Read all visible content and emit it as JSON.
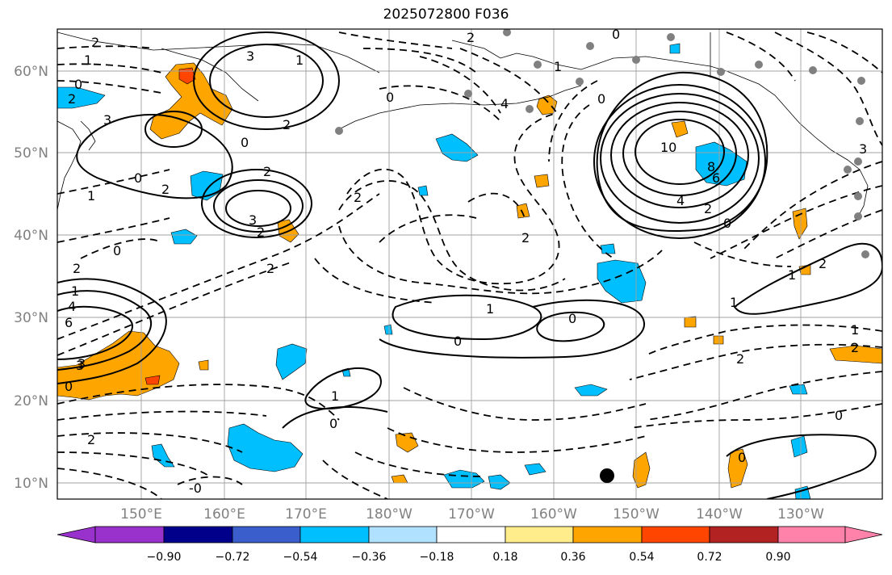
{
  "title": "2025072800 F036",
  "lat_labels": [
    "60°N",
    "50°N",
    "40°N",
    "30°N",
    "20°N",
    "10°N"
  ],
  "lon_labels": [
    "150°E",
    "160°E",
    "170°E",
    "180°W",
    "170°W",
    "160°W",
    "150°W",
    "140°W",
    "130°W"
  ],
  "colorbar": {
    "tick_labels": [
      "−0.90",
      "−0.72",
      "−0.54",
      "−0.36",
      "−0.18",
      "0.18",
      "0.36",
      "0.54",
      "0.72",
      "0.90"
    ],
    "colors": [
      "#9932cc",
      "#00008b",
      "#3a5fcd",
      "#00bfff",
      "#b0e2ff",
      "#ffffff",
      "#ffec8b",
      "#ffa500",
      "#ff4500",
      "#b22222",
      "#ff82ab"
    ]
  },
  "contour_labels": [
    "2",
    "1",
    "3",
    "2",
    "0",
    "0",
    "3",
    "2",
    "2",
    "3",
    "2",
    "2",
    "0",
    "1",
    "0",
    "0",
    "1",
    "2",
    "1",
    "4",
    "6",
    "3",
    "0",
    "2",
    "2",
    "0",
    "2",
    "0",
    "1",
    "1",
    "0",
    "2",
    "1",
    "0",
    "-0",
    "2",
    "10",
    "8",
    "6",
    "4",
    "2",
    "0",
    "0",
    "1",
    "2",
    "1",
    "1",
    "2",
    "0",
    "3",
    "4",
    "0",
    "3",
    "2"
  ],
  "colors": {
    "orange": "#ffa500",
    "red_orange": "#ff4500",
    "cyan": "#00bfff",
    "grey_dot": "#808080"
  }
}
